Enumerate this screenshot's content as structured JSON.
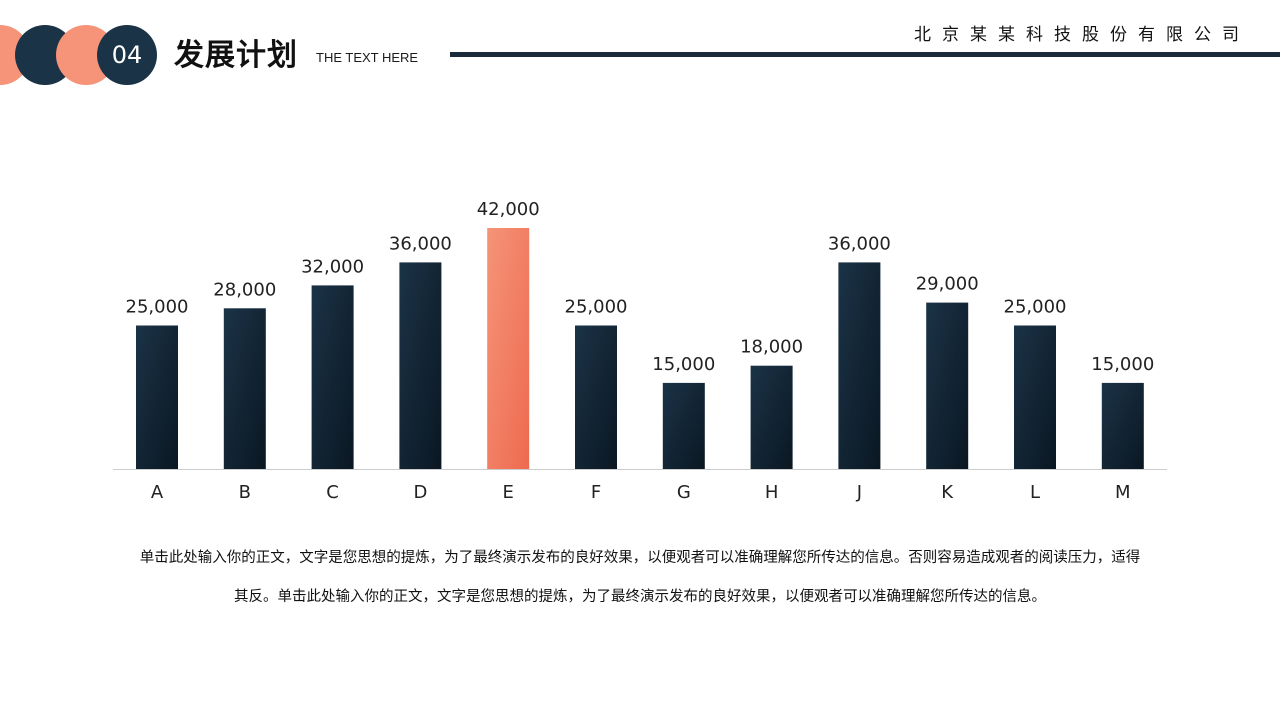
{
  "header": {
    "section_number": "04",
    "title": "发展计划",
    "subtitle": "THE TEXT HERE",
    "company": "北京某某科技股份有限公司"
  },
  "colors": {
    "navy": "#1b3347",
    "navy_dark": "#0a1722",
    "coral": "#f59478",
    "coral_dark": "#ee6a4f",
    "axis": "#cccccc"
  },
  "chart_data": {
    "type": "bar",
    "categories": [
      "A",
      "B",
      "C",
      "D",
      "E",
      "F",
      "G",
      "H",
      "J",
      "K",
      "L",
      "M"
    ],
    "values": [
      25000,
      28000,
      32000,
      36000,
      42000,
      25000,
      15000,
      18000,
      36000,
      29000,
      25000,
      15000
    ],
    "data_labels": [
      "25,000",
      "28,000",
      "32,000",
      "36,000",
      "42,000",
      "25,000",
      "15,000",
      "18,000",
      "36,000",
      "29,000",
      "25,000",
      "15,000"
    ],
    "highlight_category": "E",
    "title": "",
    "xlabel": "",
    "ylabel": "",
    "ylim": [
      0,
      42000
    ],
    "grid": false,
    "legend": "none"
  },
  "body": {
    "line1": "单击此处输入你的正文，文字是您思想的提炼，为了最终演示发布的良好效果，以便观者可以准确理解您所传达的信息。否则容易造成观者的阅读压力，适得",
    "line2": "其反。单击此处输入你的正文，文字是您思想的提炼，为了最终演示发布的良好效果，以便观者可以准确理解您所传达的信息。"
  }
}
